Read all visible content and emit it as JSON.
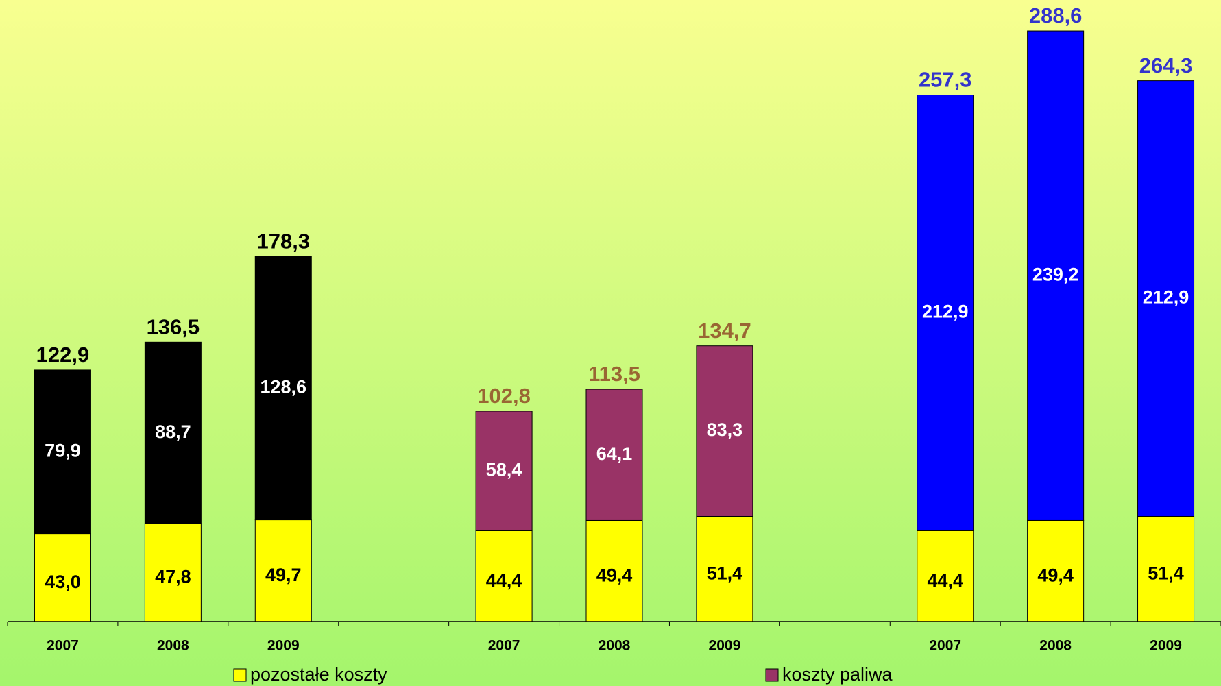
{
  "chart_data": {
    "type": "stacked_bar",
    "categories": [
      "2007",
      "2008",
      "2009",
      null,
      "2007",
      "2008",
      "2009",
      null,
      "2007",
      "2008",
      "2009"
    ],
    "series": [
      {
        "name": "pozostałe koszty",
        "color": "#ffff00",
        "label_color": "#000000",
        "values": [
          43.0,
          47.8,
          49.7,
          null,
          44.4,
          49.4,
          51.4,
          null,
          44.4,
          49.4,
          51.4
        ],
        "value_labels": [
          "43,0",
          "47,8",
          "49,7",
          null,
          "44,4",
          "49,4",
          "51,4",
          null,
          "44,4",
          "49,4",
          "51,4"
        ]
      },
      {
        "name": "koszty paliwa",
        "color": "#993366",
        "label_color": "#ffffff",
        "colors": [
          "#000000",
          "#000000",
          "#000000",
          null,
          "#993366",
          "#993366",
          "#993366",
          null,
          "#0000ff",
          "#0000ff",
          "#0000ff"
        ],
        "values": [
          79.9,
          88.7,
          128.6,
          null,
          58.4,
          64.1,
          83.3,
          null,
          212.9,
          239.2,
          212.9
        ],
        "value_labels": [
          "79,9",
          "88,7",
          "128,6",
          null,
          "58,4",
          "64,1",
          "83,3",
          null,
          "212,9",
          "239,2",
          "212,9"
        ]
      }
    ],
    "totals": [
      122.9,
      136.5,
      178.3,
      null,
      102.8,
      113.5,
      134.7,
      null,
      257.3,
      288.6,
      264.3
    ],
    "totals_labels": [
      "122,9",
      "136,5",
      "178,3",
      null,
      "102,8",
      "113,5",
      "134,7",
      null,
      "257,3",
      "288,6",
      "264,3"
    ],
    "totals_colors": [
      "#000000",
      "#000000",
      "#000000",
      null,
      "#996633",
      "#996633",
      "#996633",
      null,
      "#3333cc",
      "#3333cc",
      "#3333cc"
    ],
    "ylim": [
      0,
      300
    ]
  }
}
